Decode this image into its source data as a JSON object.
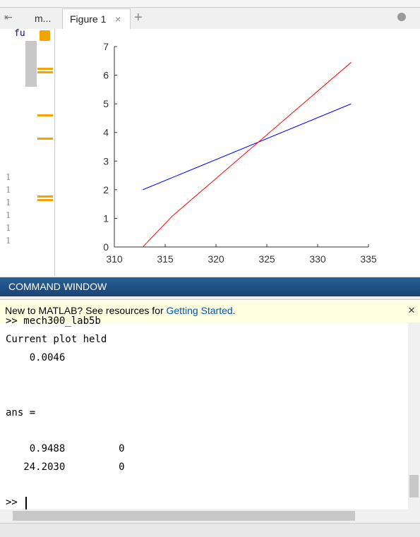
{
  "editor": {
    "tab": "m...",
    "code": "fu",
    "line_numbers": [
      "1",
      "1",
      "1",
      "1",
      "1",
      "1"
    ]
  },
  "figure_tab": {
    "title": "Figure 1",
    "close": "×",
    "add": "+"
  },
  "chart_data": {
    "type": "line",
    "xlim": [
      310,
      335
    ],
    "xticks": [
      310,
      315,
      320,
      325,
      330,
      335
    ],
    "ylim": [
      0,
      7
    ],
    "yticks": [
      0,
      1,
      2,
      3,
      4,
      5,
      6,
      7
    ],
    "series": [
      {
        "color": "#0000ff",
        "x": [
          312.8,
          333.3
        ],
        "values": [
          2,
          5
        ]
      },
      {
        "color": "#ff0000",
        "x": [
          312.8,
          315.7,
          333.3
        ],
        "values": [
          0,
          1.08,
          6.45
        ]
      }
    ]
  },
  "command_window": {
    "title": "COMMAND WINDOW",
    "banner": {
      "text": "New to MATLAB? See resources for ",
      "link": "Getting Started",
      "end": ".",
      "close": "×"
    },
    "lines": [
      ">> mech300_lab5b",
      "Current plot held",
      "    0.0046",
      "ans =",
      "    0.9488         0",
      "   24.2030         0",
      ">> "
    ]
  }
}
